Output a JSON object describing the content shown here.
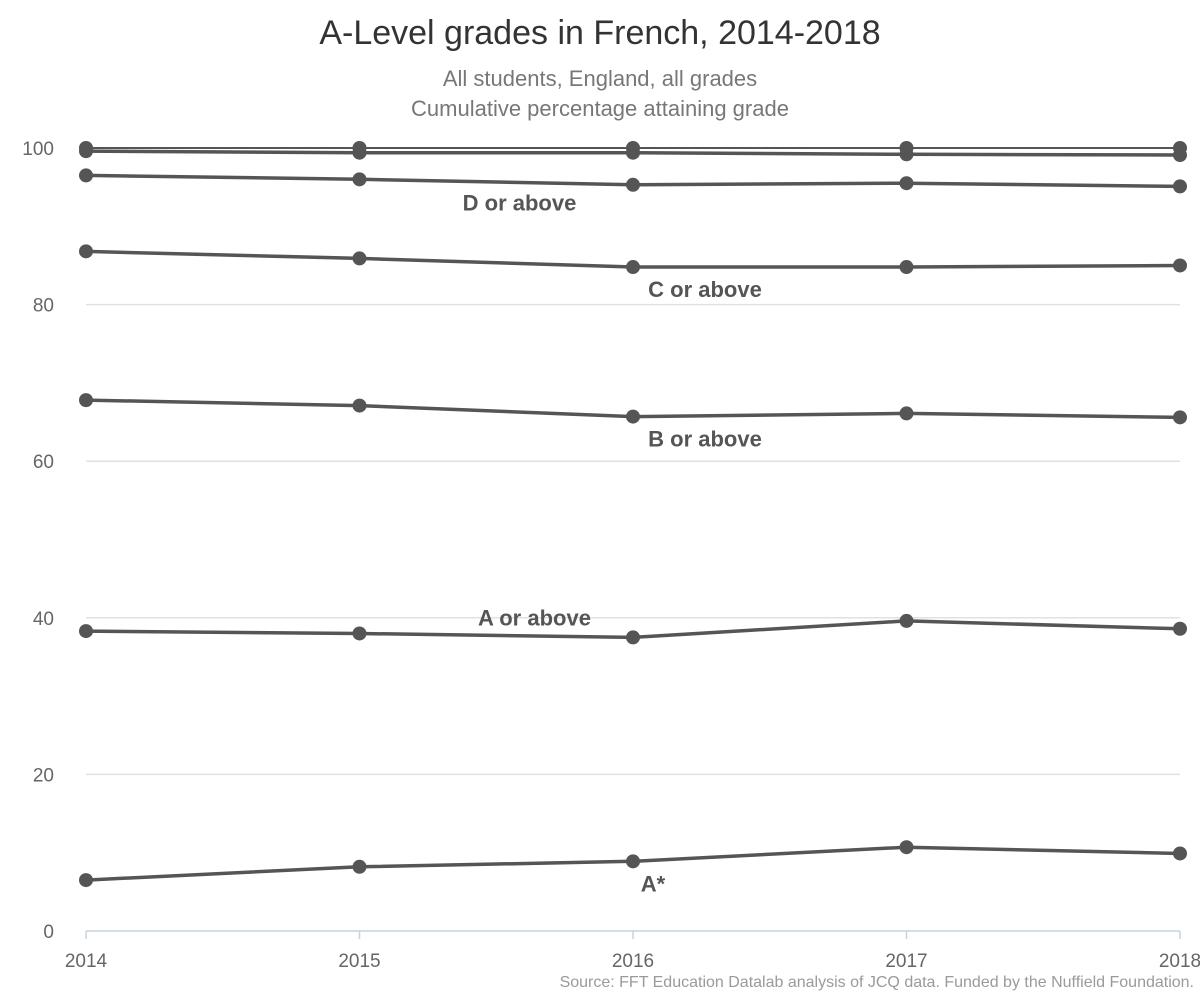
{
  "title": "A-Level grades in French, 2014-2018",
  "subtitle_line1": "All students, England, all grades",
  "subtitle_line2": "Cumulative percentage attaining grade",
  "source": "Source: FFT Education Datalab analysis of JCQ data. Funded by the Nuffield Foundation.",
  "colors": {
    "line": "#555555",
    "grid": "#dde2e6",
    "axis": "#c5d3de"
  },
  "chart_data": {
    "type": "line",
    "x": [
      2014,
      2015,
      2016,
      2017,
      2018
    ],
    "ylim": [
      0,
      100
    ],
    "yticks": [
      0,
      20,
      40,
      60,
      80,
      100
    ],
    "grid": true,
    "series": [
      {
        "name": "A*",
        "values": [
          6.5,
          8.2,
          8.9,
          10.7,
          9.9
        ]
      },
      {
        "name": "A or above",
        "values": [
          38.3,
          38.0,
          37.5,
          39.6,
          38.6
        ]
      },
      {
        "name": "B or above",
        "values": [
          67.8,
          67.1,
          65.7,
          66.1,
          65.6
        ]
      },
      {
        "name": "C or above",
        "values": [
          86.8,
          85.9,
          84.8,
          84.8,
          85.0
        ]
      },
      {
        "name": "D or above",
        "values": [
          96.5,
          96.0,
          95.3,
          95.5,
          95.1
        ]
      },
      {
        "name": "",
        "values": [
          99.6,
          99.4,
          99.4,
          99.2,
          99.1
        ]
      },
      {
        "name": "",
        "values": [
          100,
          100,
          100,
          100,
          100
        ]
      }
    ]
  }
}
